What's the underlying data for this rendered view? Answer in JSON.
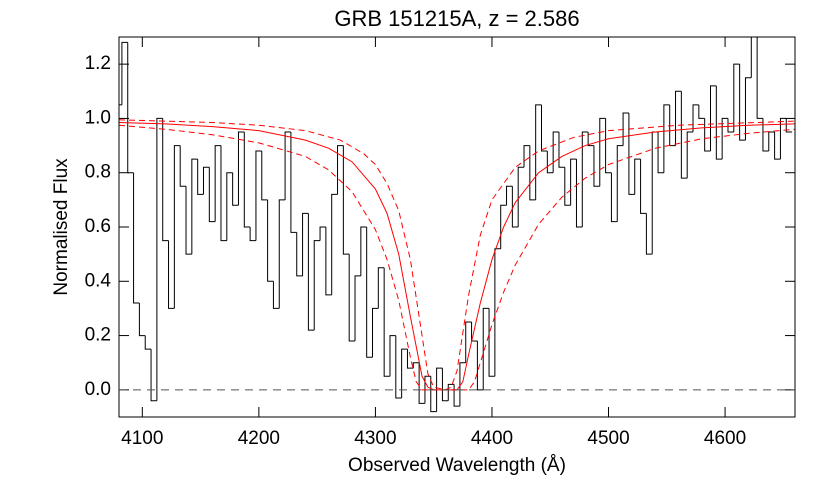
{
  "chart_data": {
    "type": "line",
    "title": "GRB 151215A, z = 2.586",
    "xlabel": "Observed Wavelength (Å)",
    "ylabel": "Normalised Flux",
    "xlim": [
      4080,
      4660
    ],
    "ylim": [
      -0.1,
      1.3
    ],
    "xticks": [
      4100,
      4200,
      4300,
      4400,
      4500,
      4600
    ],
    "yticks": [
      {
        "value": 0,
        "label": "0.0"
      },
      0.2,
      0.4,
      0.6,
      0.8,
      {
        "value": 1,
        "label": "1.0"
      },
      1.2
    ],
    "reference_line": 0,
    "reference_color": "#555555",
    "series": [
      {
        "color": "#000000",
        "style": "step",
        "x": [
          4080,
          4085,
          4090,
          4095,
          4100,
          4105,
          4110,
          4115,
          4120,
          4125,
          4130,
          4135,
          4140,
          4145,
          4150,
          4155,
          4160,
          4165,
          4170,
          4175,
          4180,
          4185,
          4190,
          4195,
          4200,
          4205,
          4210,
          4215,
          4220,
          4225,
          4230,
          4235,
          4240,
          4245,
          4250,
          4255,
          4260,
          4265,
          4270,
          4275,
          4280,
          4285,
          4290,
          4295,
          4300,
          4305,
          4310,
          4315,
          4320,
          4325,
          4330,
          4335,
          4340,
          4345,
          4350,
          4355,
          4360,
          4365,
          4370,
          4375,
          4380,
          4385,
          4390,
          4395,
          4400,
          4405,
          4410,
          4415,
          4420,
          4425,
          4430,
          4435,
          4440,
          4445,
          4450,
          4455,
          4460,
          4465,
          4470,
          4475,
          4480,
          4485,
          4490,
          4495,
          4500,
          4505,
          4510,
          4515,
          4520,
          4525,
          4530,
          4535,
          4540,
          4545,
          4550,
          4555,
          4560,
          4565,
          4570,
          4575,
          4580,
          4585,
          4590,
          4595,
          4600,
          4605,
          4610,
          4615,
          4620,
          4625,
          4630,
          4635,
          4640,
          4645,
          4650,
          4655
        ],
        "values": [
          1.05,
          1.28,
          0.8,
          0.32,
          0.2,
          0.15,
          -0.04,
          1.0,
          0.55,
          0.3,
          0.9,
          0.75,
          0.5,
          0.85,
          0.72,
          0.82,
          0.62,
          0.9,
          0.55,
          0.8,
          0.68,
          0.95,
          0.6,
          0.55,
          0.88,
          0.7,
          0.4,
          0.3,
          0.7,
          0.95,
          0.58,
          0.42,
          0.65,
          0.22,
          0.55,
          0.6,
          0.35,
          0.72,
          0.9,
          0.5,
          0.18,
          0.42,
          0.6,
          0.12,
          0.3,
          0.45,
          0.05,
          0.2,
          -0.03,
          0.15,
          0.08,
          0.1,
          -0.05,
          0.05,
          -0.08,
          0.08,
          -0.04,
          0.02,
          -0.06,
          0.1,
          0.25,
          0.18,
          0.0,
          0.3,
          0.05,
          0.52,
          0.68,
          0.75,
          0.6,
          0.82,
          0.9,
          0.7,
          1.05,
          0.88,
          0.8,
          0.95,
          0.82,
          0.68,
          0.85,
          0.6,
          0.95,
          0.9,
          0.75,
          1.0,
          0.8,
          0.62,
          0.9,
          1.02,
          0.72,
          0.85,
          0.65,
          0.5,
          0.95,
          0.8,
          1.05,
          0.9,
          1.1,
          0.78,
          0.95,
          1.05,
          1.0,
          0.88,
          1.12,
          0.85,
          1.0,
          0.95,
          1.2,
          0.92,
          1.15,
          1.3,
          1.0,
          0.88,
          0.95,
          0.85,
          1.0,
          0.95
        ]
      },
      {
        "color": "#ff0000",
        "style": "solid",
        "x": [
          4080,
          4120,
          4160,
          4200,
          4240,
          4260,
          4280,
          4300,
          4310,
          4320,
          4330,
          4340,
          4345,
          4350,
          4360,
          4370,
          4375,
          4380,
          4390,
          4400,
          4410,
          4420,
          4440,
          4460,
          4480,
          4500,
          4540,
          4580,
          4620,
          4660
        ],
        "values": [
          0.985,
          0.98,
          0.97,
          0.955,
          0.92,
          0.89,
          0.84,
          0.74,
          0.65,
          0.5,
          0.27,
          0.05,
          0.01,
          0,
          0,
          0,
          0.03,
          0.13,
          0.32,
          0.48,
          0.6,
          0.69,
          0.8,
          0.86,
          0.9,
          0.925,
          0.95,
          0.965,
          0.975,
          0.98
        ]
      },
      {
        "color": "#ff0000",
        "style": "dashed",
        "x": [
          4080,
          4160,
          4200,
          4240,
          4270,
          4290,
          4300,
          4310,
          4320,
          4330,
          4340,
          4345,
          4350,
          4360,
          4365,
          4370,
          4380,
          4390,
          4400,
          4420,
          4440,
          4470,
          4500,
          4560,
          4660
        ],
        "values": [
          0.995,
          0.985,
          0.975,
          0.955,
          0.92,
          0.87,
          0.83,
          0.76,
          0.66,
          0.48,
          0.2,
          0.06,
          0.01,
          0,
          0.01,
          0.07,
          0.35,
          0.57,
          0.7,
          0.82,
          0.88,
          0.93,
          0.955,
          0.975,
          0.99
        ]
      },
      {
        "color": "#ff0000",
        "style": "dashed",
        "x": [
          4080,
          4120,
          4160,
          4200,
          4240,
          4260,
          4280,
          4300,
          4310,
          4320,
          4330,
          4335,
          4340,
          4380,
          4385,
          4390,
          4400,
          4410,
          4420,
          4440,
          4460,
          4480,
          4500,
          4540,
          4580,
          4620,
          4660
        ],
        "values": [
          0.975,
          0.96,
          0.94,
          0.91,
          0.86,
          0.81,
          0.73,
          0.59,
          0.48,
          0.33,
          0.12,
          0.03,
          0,
          0,
          0.03,
          0.1,
          0.24,
          0.36,
          0.46,
          0.61,
          0.71,
          0.78,
          0.83,
          0.89,
          0.925,
          0.945,
          0.96
        ]
      }
    ]
  }
}
